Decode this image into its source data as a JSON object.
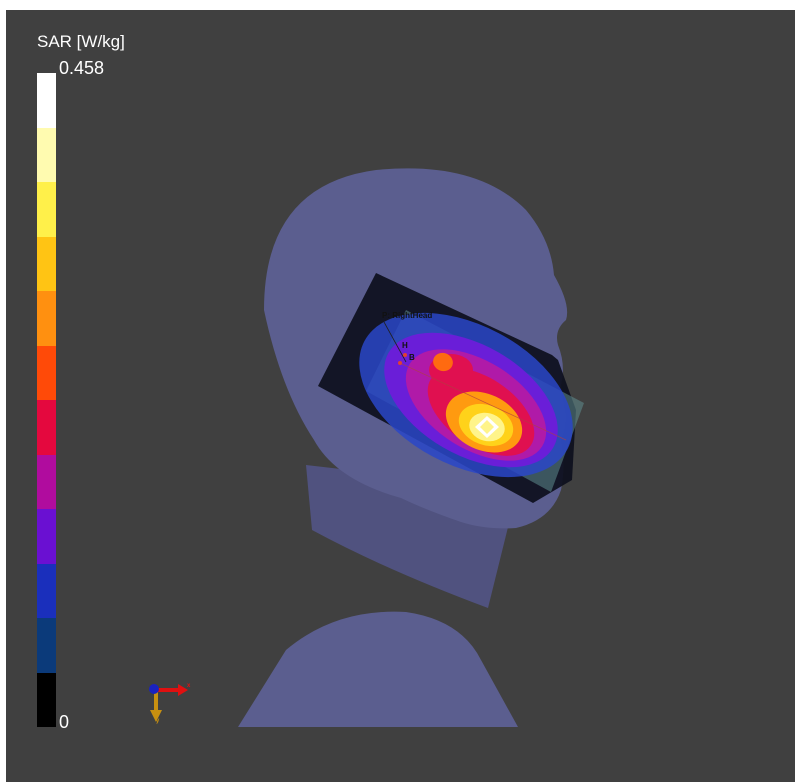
{
  "legend": {
    "title": "SAR [W/kg]",
    "max": "0.458",
    "min": "0",
    "colors": [
      "#ffffff",
      "#fffbb0",
      "#fff04a",
      "#ffc414",
      "#ff9010",
      "#ff4a08",
      "#e4083e",
      "#b00c9e",
      "#6a10d2",
      "#1a2fbc",
      "#0b3a7a",
      "#000000"
    ]
  },
  "scene": {
    "head_color": "#5b5e8f",
    "labels": {
      "probe": "P: RightHead",
      "h": "H",
      "b": "B"
    },
    "axes": {
      "x": "x",
      "y": "y",
      "x_color": "#e01010",
      "y_color": "#c89010",
      "z_color": "#1a22c0"
    }
  }
}
